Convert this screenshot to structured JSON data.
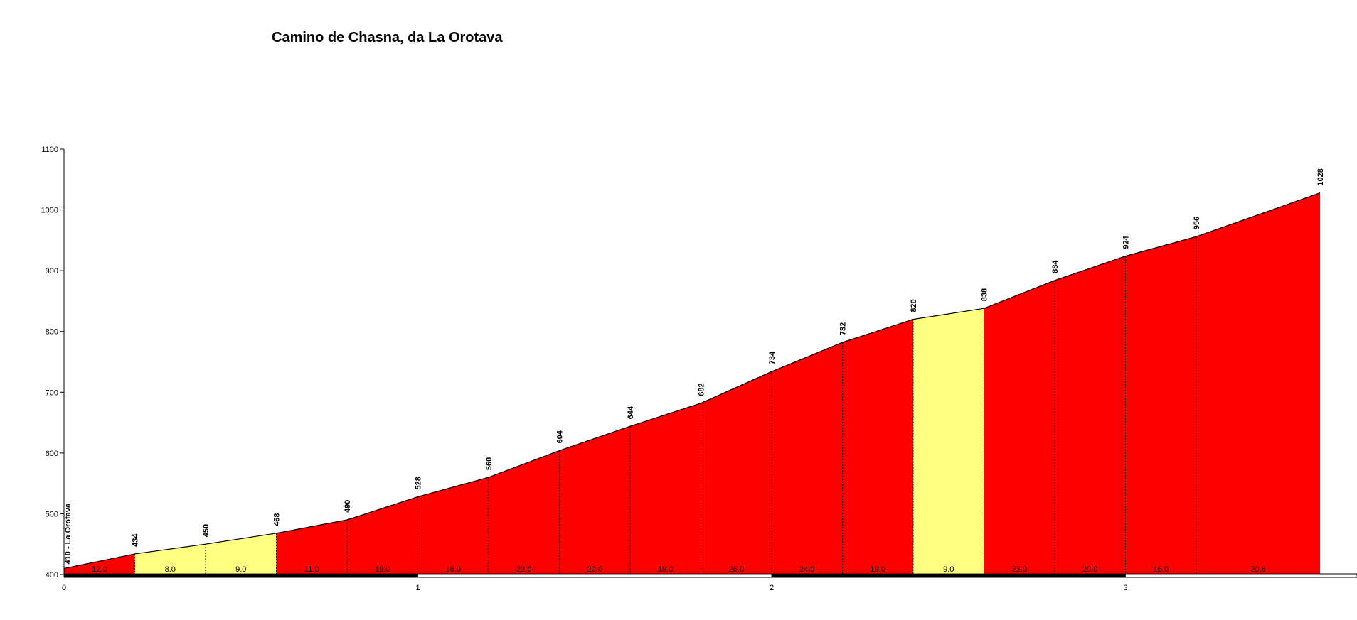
{
  "chart_data": {
    "type": "area",
    "title": "Camino de Chasna, da La Orotava",
    "xlabel": "",
    "ylabel": "",
    "xlim": [
      0,
      3.55
    ],
    "ylim": [
      400,
      1100
    ],
    "y_ticks": [
      400,
      500,
      600,
      700,
      800,
      900,
      1000,
      1100
    ],
    "x_ticks": [
      0,
      1,
      2,
      3
    ],
    "start_label": "410 - La Orotava",
    "points": [
      {
        "x": 0.0,
        "y": 410
      },
      {
        "x": 0.2,
        "y": 434
      },
      {
        "x": 0.4,
        "y": 450
      },
      {
        "x": 0.6,
        "y": 468
      },
      {
        "x": 0.8,
        "y": 490
      },
      {
        "x": 1.0,
        "y": 528
      },
      {
        "x": 1.2,
        "y": 560
      },
      {
        "x": 1.4,
        "y": 604
      },
      {
        "x": 1.6,
        "y": 644
      },
      {
        "x": 1.8,
        "y": 682
      },
      {
        "x": 2.0,
        "y": 734
      },
      {
        "x": 2.2,
        "y": 782
      },
      {
        "x": 2.4,
        "y": 820
      },
      {
        "x": 2.6,
        "y": 838
      },
      {
        "x": 2.8,
        "y": 884
      },
      {
        "x": 3.0,
        "y": 924
      },
      {
        "x": 3.2,
        "y": 956
      },
      {
        "x": 3.55,
        "y": 1028
      }
    ],
    "point_labels": [
      "434",
      "450",
      "468",
      "490",
      "528",
      "560",
      "604",
      "644",
      "682",
      "734",
      "782",
      "820",
      "838",
      "884",
      "924",
      "956",
      "1028"
    ],
    "gradients": [
      "12.0",
      "8.0",
      "9.0",
      "11.0",
      "19.0",
      "16.0",
      "22.0",
      "20.0",
      "19.0",
      "26.0",
      "24.0",
      "19.0",
      "9.0",
      "23.0",
      "20.0",
      "16.0",
      "20.6"
    ],
    "colors": {
      "steep": "#ff0000",
      "moderate": "#ffff80",
      "line": "#000000",
      "background": "#ffffff"
    },
    "segment_classes": [
      "steep",
      "moderate",
      "moderate",
      "steep",
      "steep",
      "steep",
      "steep",
      "steep",
      "steep",
      "steep",
      "steep",
      "steep",
      "moderate",
      "steep",
      "steep",
      "steep",
      "steep"
    ]
  }
}
